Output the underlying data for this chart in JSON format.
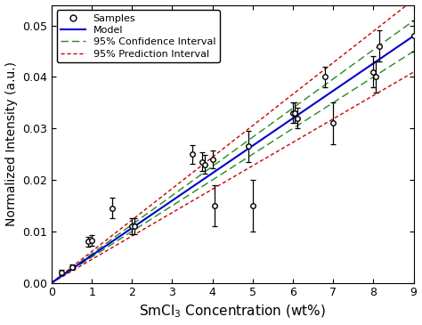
{
  "title": "",
  "xlabel": "SmCl$_3$ Concentration (wt%)",
  "ylabel": "Normalized Intensity (a.u.)",
  "xlim": [
    0.0,
    9.0
  ],
  "ylim": [
    0.0,
    0.054
  ],
  "xticks": [
    0.0,
    1.0,
    2.0,
    3.0,
    4.0,
    5.0,
    6.0,
    7.0,
    8.0,
    9.0
  ],
  "yticks": [
    0.0,
    0.01,
    0.02,
    0.03,
    0.04,
    0.05
  ],
  "samples_x": [
    0.25,
    0.5,
    0.9,
    1.0,
    1.5,
    2.0,
    2.05,
    3.5,
    3.75,
    3.8,
    4.0,
    4.05,
    4.9,
    5.0,
    6.0,
    6.05,
    6.1,
    6.8,
    7.0,
    8.0,
    8.05,
    8.15,
    9.0
  ],
  "samples_y": [
    0.002,
    0.003,
    0.008,
    0.0082,
    0.0145,
    0.011,
    0.011,
    0.025,
    0.0235,
    0.023,
    0.024,
    0.015,
    0.0265,
    0.015,
    0.033,
    0.033,
    0.032,
    0.04,
    0.031,
    0.041,
    0.04,
    0.046,
    0.048
  ],
  "samples_yerr": [
    0.0005,
    0.0005,
    0.001,
    0.001,
    0.002,
    0.0015,
    0.0015,
    0.0018,
    0.0018,
    0.0018,
    0.0018,
    0.004,
    0.003,
    0.005,
    0.002,
    0.002,
    0.002,
    0.002,
    0.004,
    0.003,
    0.003,
    0.003,
    0.003
  ],
  "model_slope": 0.00533,
  "model_intercept": 0.0,
  "model_color": "#0000CC",
  "ci_color": "#228B22",
  "pi_color": "#CC0000",
  "legend_labels": [
    "Samples",
    "Model",
    "95% Confidence Interval",
    "95% Prediction Interval"
  ],
  "figsize": [
    4.74,
    3.65
  ],
  "dpi": 100
}
